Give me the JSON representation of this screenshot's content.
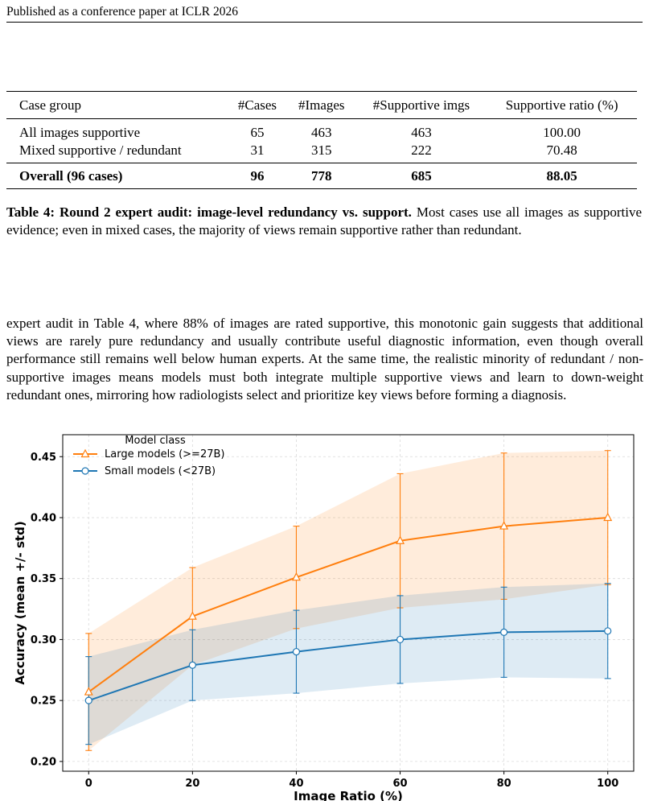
{
  "header": {
    "text": "Published as a conference paper at ICLR 2026"
  },
  "table": {
    "columns": [
      "Case group",
      "#Cases",
      "#Images",
      "#Supportive imgs",
      "Supportive ratio (%)"
    ],
    "rows": [
      [
        "All images supportive",
        "65",
        "463",
        "463",
        "100.00"
      ],
      [
        "Mixed supportive / redundant",
        "31",
        "315",
        "222",
        "70.48"
      ]
    ],
    "total": [
      "Overall (96 cases)",
      "96",
      "778",
      "685",
      "88.05"
    ]
  },
  "caption": {
    "label": "Table 4: Round 2 expert audit: image-level redundancy vs. support.",
    "text": "Most cases use all images as supportive evidence; even in mixed cases, the majority of views remain supportive rather than redundant."
  },
  "paragraph": "expert audit in Table 4, where 88% of images are rated supportive, this monotonic gain suggests that additional views are rarely pure redundancy and usually contribute useful diagnostic information, even though overall performance still remains well below human experts. At the same time, the realistic minority of redundant / non-supportive images means models must both integrate multiple supportive views and learn to down-weight redundant ones, mirroring how radiologists select and prioritize key views before forming a diagnosis.",
  "chart_data": {
    "type": "line",
    "xlabel": "Image Ratio (%)",
    "ylabel": "Accuracy (mean +/- std)",
    "x": [
      0,
      20,
      40,
      60,
      80,
      100
    ],
    "xticks": [
      "0",
      "20",
      "40",
      "60",
      "80",
      "100"
    ],
    "yticks": [
      "0.20",
      "0.25",
      "0.30",
      "0.35",
      "0.40",
      "0.45"
    ],
    "xlim": [
      -5,
      105
    ],
    "ylim": [
      0.192,
      0.468
    ],
    "grid": true,
    "legend": {
      "title": "Model class",
      "position": "top-left"
    },
    "series": [
      {
        "name": "Large models (>=27B)",
        "color": "#ff7f0e",
        "marker": "triangle",
        "values": [
          0.257,
          0.319,
          0.351,
          0.381,
          0.393,
          0.4
        ],
        "std": [
          0.048,
          0.04,
          0.042,
          0.055,
          0.06,
          0.055
        ]
      },
      {
        "name": "Small models (<27B)",
        "color": "#1f77b4",
        "marker": "circle",
        "values": [
          0.25,
          0.279,
          0.29,
          0.3,
          0.306,
          0.307
        ],
        "std": [
          0.036,
          0.029,
          0.034,
          0.036,
          0.037,
          0.039
        ]
      }
    ]
  }
}
